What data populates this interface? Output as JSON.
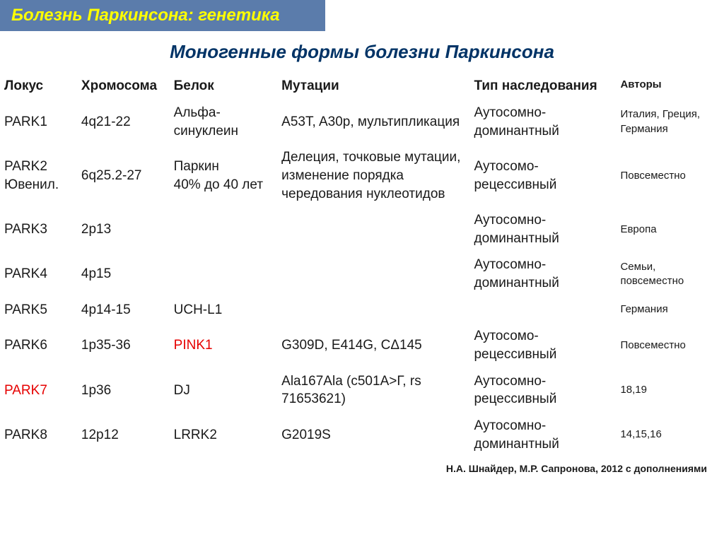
{
  "header": {
    "title": "Болезнь Паркинсона: генетика"
  },
  "subtitle": "Моногенные формы болезни Паркинсона",
  "table": {
    "columns": {
      "locus": "Локус",
      "chromosome": "Хромосома",
      "protein": "Белок",
      "mutations": "Мутации",
      "inheritance": "Тип наследования",
      "authors": "Авторы"
    },
    "rows": [
      {
        "locus": "PARK1",
        "locus_red": false,
        "chromosome": "4q21-22",
        "protein": "Альфа-синуклеин",
        "protein_red": false,
        "mutations": "A53T, A30p, мультипликация",
        "inheritance": "Аутосомно-доминантный",
        "authors": "Италия, Греция, Германия"
      },
      {
        "locus": "PARK2 Ювенил.",
        "locus_red": false,
        "chromosome": "6q25.2-27",
        "protein": "Паркин\n40% до 40 лет",
        "protein_red": false,
        "mutations": "Делеция, точковые мутации, изменение порядка чередования нуклеотидов",
        "inheritance": "Аутосомо-рецессивный",
        "authors": "Повсеместно"
      },
      {
        "locus": "PARK3",
        "locus_red": false,
        "chromosome": "2p13",
        "protein": "",
        "protein_red": false,
        "mutations": "",
        "inheritance": "Аутосомно-доминантный",
        "authors": "Европа"
      },
      {
        "locus": "PARK4",
        "locus_red": false,
        "chromosome": "4p15",
        "protein": "",
        "protein_red": false,
        "mutations": "",
        "inheritance": "Аутосомно-доминантный",
        "authors": "Семьи, повсеместно"
      },
      {
        "locus": "PARK5",
        "locus_red": false,
        "chromosome": "4p14-15",
        "protein": "UCH-L1",
        "protein_red": false,
        "mutations": "",
        "inheritance": "",
        "authors": "Германия"
      },
      {
        "locus": "PARK6",
        "locus_red": false,
        "chromosome": "1p35-36",
        "protein": "PINK1",
        "protein_red": true,
        "mutations": "G309D, E414G, CΔ145",
        "inheritance": "Аутосомо-рецессивный",
        "authors": "Повсеместно"
      },
      {
        "locus": "PARK7",
        "locus_red": true,
        "chromosome": "1p36",
        "protein": "DJ",
        "protein_red": false,
        "mutations": "Ala167Ala (c501A>Г, rs 71653621)",
        "inheritance": "Аутосомно-рецессивный",
        "authors": "18,19"
      },
      {
        "locus": "PARK8",
        "locus_red": false,
        "chromosome": "12p12",
        "protein": "LRRK2",
        "protein_red": false,
        "mutations": "G2019S",
        "inheritance": "Аутосомно-доминантный",
        "authors": "14,15,16"
      }
    ]
  },
  "footer": "Н.А. Шнайдер, М.Р. Сапронова, 2012 с дополнениями",
  "colors": {
    "header_bg": "#5b7cab",
    "header_text": "#ffff00",
    "subtitle_text": "#003366",
    "body_text": "#1a1a1a",
    "red_text": "#e60000",
    "background": "#ffffff"
  }
}
